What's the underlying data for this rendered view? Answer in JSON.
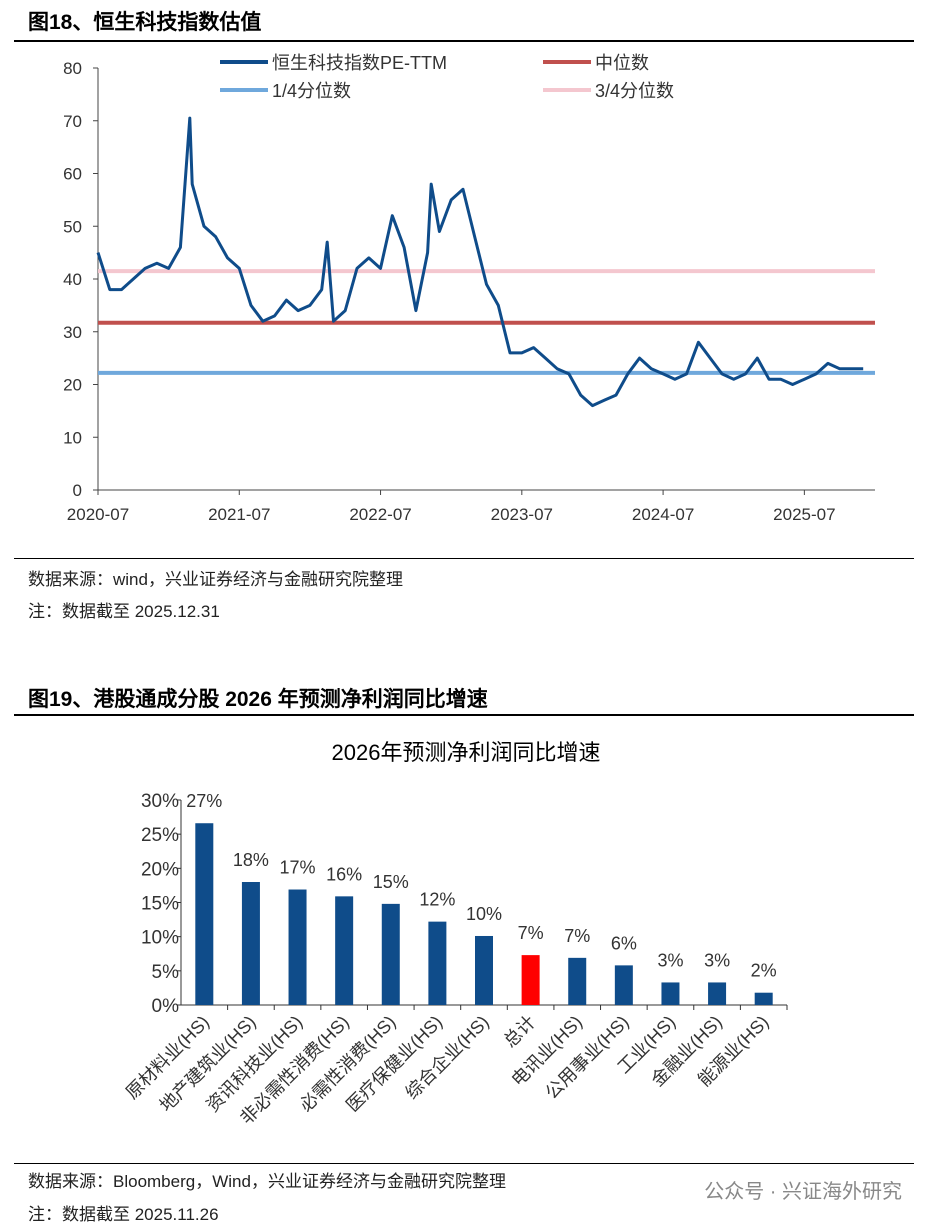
{
  "fig18": {
    "title": "图18、恒生科技指数估值",
    "source": "数据来源：wind，兴业证券经济与金融研究院整理",
    "note": "注：数据截至 2025.12.31"
  },
  "fig19": {
    "title": "图19、港股通成分股 2026 年预测净利润同比增速",
    "source": "数据来源：Bloomberg，Wind，兴业证券经济与金融研究院整理",
    "note": "注：数据截至 2025.11.26"
  },
  "watermark": "公众号 · 兴证海外研究",
  "chart_data": [
    {
      "type": "line",
      "title": "",
      "ylim": [
        0,
        80
      ],
      "yticks": [
        0,
        10,
        20,
        30,
        40,
        50,
        60,
        70,
        80
      ],
      "xticks": [
        "2020-07",
        "2021-07",
        "2022-07",
        "2023-07",
        "2024-07",
        "2025-07"
      ],
      "xlim": [
        "2020-07",
        "2025-12"
      ],
      "grid": false,
      "legend": "top",
      "series": [
        {
          "name": "恒生科技指数PE-TTM",
          "color": "#0f4c8a",
          "x": [
            "2020-07",
            "2020-08",
            "2020-09",
            "2020-10",
            "2020-11",
            "2020-12",
            "2021-01",
            "2021-02",
            "2021-02-25",
            "2021-03",
            "2021-04",
            "2021-05",
            "2021-06",
            "2021-07",
            "2021-08",
            "2021-09",
            "2021-10",
            "2021-11",
            "2021-12",
            "2022-01",
            "2022-02",
            "2022-02-15",
            "2022-03",
            "2022-04",
            "2022-05",
            "2022-06",
            "2022-07",
            "2022-08",
            "2022-09",
            "2022-10",
            "2022-11",
            "2022-11-10",
            "2022-12",
            "2023-01",
            "2023-02",
            "2023-03",
            "2023-04",
            "2023-05",
            "2023-06",
            "2023-07",
            "2023-08",
            "2023-09",
            "2023-10",
            "2023-11",
            "2023-12",
            "2024-01",
            "2024-02",
            "2024-03",
            "2024-04",
            "2024-05",
            "2024-06",
            "2024-07",
            "2024-08",
            "2024-09",
            "2024-10",
            "2024-11",
            "2024-12",
            "2025-01",
            "2025-02",
            "2025-03",
            "2025-04",
            "2025-05",
            "2025-06",
            "2025-07",
            "2025-08",
            "2025-09",
            "2025-10",
            "2025-11",
            "2025-12"
          ],
          "y": [
            45,
            38,
            38,
            40,
            42,
            43,
            42,
            46,
            70.5,
            58,
            50,
            48,
            44,
            42,
            35,
            32,
            33,
            36,
            34,
            35,
            38,
            47,
            32,
            34,
            42,
            44,
            42,
            52,
            46,
            34,
            45,
            58,
            49,
            55,
            57,
            48,
            39,
            35,
            26,
            26,
            27,
            25,
            23,
            22,
            18,
            16,
            17,
            18,
            22,
            25,
            23,
            22,
            21,
            22,
            28,
            25,
            22,
            21,
            22,
            25,
            21,
            21,
            20,
            21,
            22,
            24,
            23,
            23,
            23
          ]
        },
        {
          "name": "中位数",
          "color": "#c0504d",
          "value": 31.7
        },
        {
          "name": "1/4分位数",
          "color": "#6fa8dc",
          "value": 22.2
        },
        {
          "name": "3/4分位数",
          "color": "#f4c7cf",
          "value": 41.5
        }
      ]
    },
    {
      "type": "bar",
      "title": "2026年预测净利润同比增速",
      "ylim": [
        0,
        30
      ],
      "yticks": [
        "0%",
        "5%",
        "10%",
        "15%",
        "20%",
        "25%",
        "30%"
      ],
      "categories": [
        "原材料业(HS)",
        "地产建筑业(HS)",
        "资讯科技业(HS)",
        "非必需性消费(HS)",
        "必需性消费(HS)",
        "医疗保健业(HS)",
        "综合企业(HS)",
        "总计",
        "电讯业(HS)",
        "公用事业(HS)",
        "工业(HS)",
        "金融业(HS)",
        "能源业(HS)"
      ],
      "values": [
        26.6,
        18.0,
        16.9,
        15.9,
        14.8,
        12.2,
        10.1,
        7.3,
        6.9,
        5.8,
        3.3,
        3.3,
        1.8
      ],
      "labels": [
        "27%",
        "18%",
        "17%",
        "16%",
        "15%",
        "12%",
        "10%",
        "7%",
        "7%",
        "6%",
        "3%",
        "3%",
        "2%"
      ],
      "colors": {
        "bar": "#0f4c8a",
        "highlight": "#ff0000"
      }
    }
  ]
}
